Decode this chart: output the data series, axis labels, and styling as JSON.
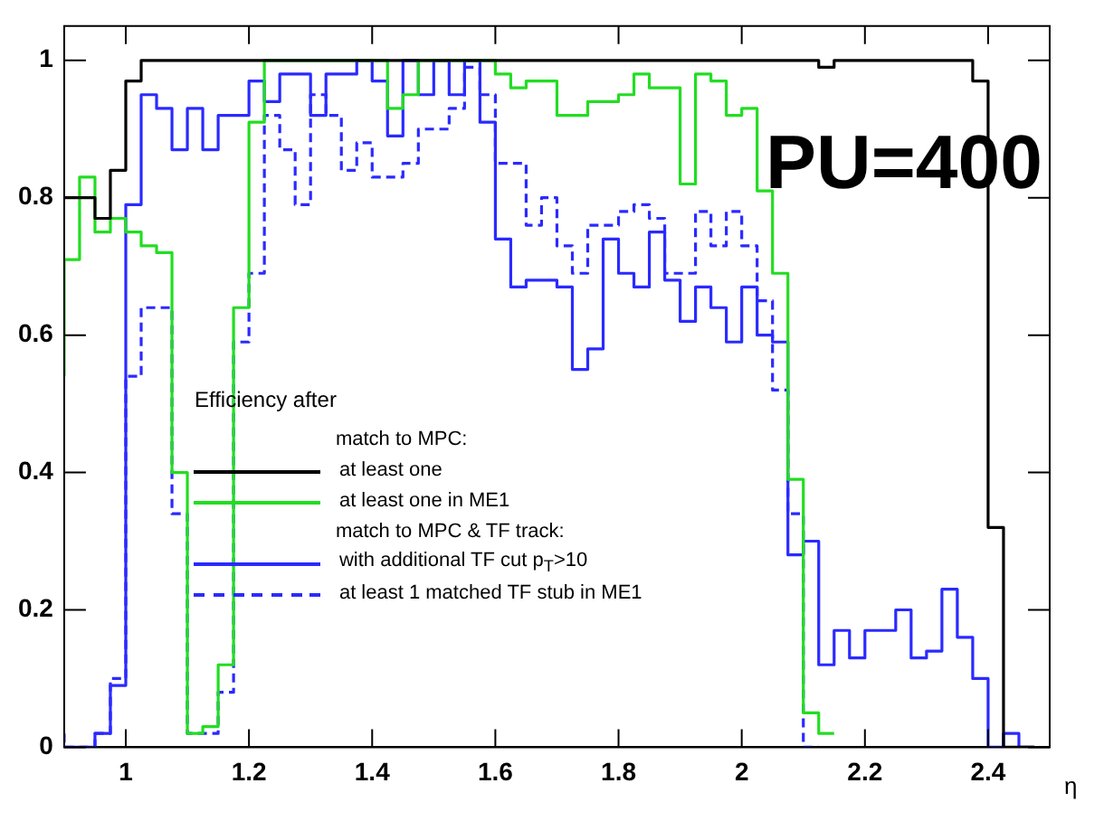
{
  "chart_data": {
    "type": "step",
    "xlabel": "η",
    "legend_title": "Efficiency after",
    "legend": "bottom left",
    "annotations": [
      "match to MPC:",
      "match to MPC & TF track:",
      "PU=400"
    ],
    "x": [
      0.9,
      0.925,
      0.95,
      0.975,
      1.0,
      1.025,
      1.05,
      1.075,
      1.1,
      1.125,
      1.15,
      1.175,
      1.2,
      1.225,
      1.25,
      1.275,
      1.3,
      1.325,
      1.35,
      1.375,
      1.4,
      1.425,
      1.45,
      1.475,
      1.5,
      1.525,
      1.55,
      1.575,
      1.6,
      1.625,
      1.65,
      1.675,
      1.7,
      1.725,
      1.75,
      1.775,
      1.8,
      1.825,
      1.85,
      1.875,
      1.9,
      1.925,
      1.95,
      1.975,
      2.0,
      2.025,
      2.05,
      2.075,
      2.1,
      2.125,
      2.15,
      2.175,
      2.2,
      2.225,
      2.25,
      2.275,
      2.3,
      2.325,
      2.35,
      2.375,
      2.4,
      2.425,
      2.45,
      2.475
    ],
    "xlim": [
      0.9,
      2.5
    ],
    "xticks": [
      1,
      1.2,
      1.4,
      1.6,
      1.8,
      2,
      2.2,
      2.4
    ],
    "ylim": [
      0,
      1.05
    ],
    "yticks": [
      0,
      0.2,
      0.4,
      0.6,
      0.8,
      1
    ],
    "grid": false,
    "series": [
      {
        "name": "at least one",
        "color": "#000000",
        "values": [
          0.8,
          0.8,
          0.8,
          0.77,
          0.84,
          0.97,
          1,
          1,
          1,
          1,
          1,
          1,
          1,
          1,
          1,
          1,
          1,
          1,
          1,
          1,
          1,
          1,
          1,
          1,
          1,
          1,
          1,
          1,
          1,
          1,
          1,
          1,
          1,
          1,
          1,
          1,
          1,
          1,
          1,
          1,
          1,
          1,
          1,
          1,
          1,
          1,
          1,
          1,
          1,
          1,
          0.99,
          1,
          1,
          1,
          1,
          1,
          1,
          1,
          1,
          1,
          0.97,
          0.32,
          0,
          0
        ]
      },
      {
        "name": "at least one in ME1",
        "color": "#22dd22",
        "values": [
          0.54,
          0.71,
          0.83,
          0.75,
          0.77,
          0.75,
          0.73,
          0.72,
          0.4,
          0.02,
          0.03,
          0.12,
          0.64,
          0.91,
          1,
          1,
          1,
          1,
          1,
          1,
          1,
          1,
          0.93,
          0.95,
          1,
          1,
          1,
          1,
          1,
          0.98,
          0.96,
          0.97,
          0.97,
          0.92,
          0.92,
          0.94,
          0.94,
          0.95,
          0.98,
          0.96,
          0.96,
          0.82,
          0.98,
          0.97,
          0.92,
          0.93,
          0.81,
          0.69,
          0.39,
          0.05,
          0.02,
          null,
          null,
          null,
          null,
          null,
          null,
          null,
          null,
          null,
          null,
          null,
          null,
          null
        ]
      },
      {
        "name": "with additional TF cut p$_{T}$>10",
        "color": "#2a2aff",
        "values": [
          0,
          0,
          0,
          0.02,
          0.09,
          0.79,
          0.95,
          0.93,
          0.87,
          0.93,
          0.87,
          0.92,
          0.92,
          0.97,
          0.94,
          0.98,
          0.98,
          0.92,
          0.98,
          0.98,
          1,
          0.97,
          0.89,
          1,
          0.95,
          1,
          0.95,
          1,
          0.91,
          0.74,
          0.67,
          0.68,
          0.68,
          0.67,
          0.55,
          0.58,
          0.74,
          0.69,
          0.67,
          0.75,
          0.68,
          0.62,
          0.67,
          0.64,
          0.59,
          0.67,
          0.6,
          0.59,
          0.28,
          0.3,
          0.12,
          0.17,
          0.13,
          0.17,
          0.17,
          0.2,
          0.13,
          0.14,
          0.23,
          0.16,
          0.1,
          0,
          0.02,
          0
        ]
      },
      {
        "name": "at least 1 matched TF stub in ME1",
        "color": "#2a2aff",
        "line_style": "dashed",
        "values": [
          0.02,
          0,
          0,
          0.02,
          0.1,
          0.54,
          0.64,
          0.64,
          0.34,
          0.02,
          0.02,
          0.08,
          0.59,
          0.69,
          0.92,
          0.87,
          0.79,
          0.95,
          0.92,
          0.84,
          0.88,
          0.83,
          0.83,
          0.85,
          0.9,
          0.9,
          0.93,
          0.99,
          0.95,
          0.85,
          0.85,
          0.76,
          0.8,
          0.73,
          0.69,
          0.76,
          0.76,
          0.78,
          0.79,
          0.77,
          0.69,
          0.69,
          0.78,
          0.73,
          0.78,
          0.73,
          0.65,
          0.52,
          0.34,
          0,
          null,
          null,
          null,
          null,
          null,
          null,
          null,
          null,
          null,
          null,
          null,
          null,
          null,
          null
        ]
      }
    ]
  }
}
